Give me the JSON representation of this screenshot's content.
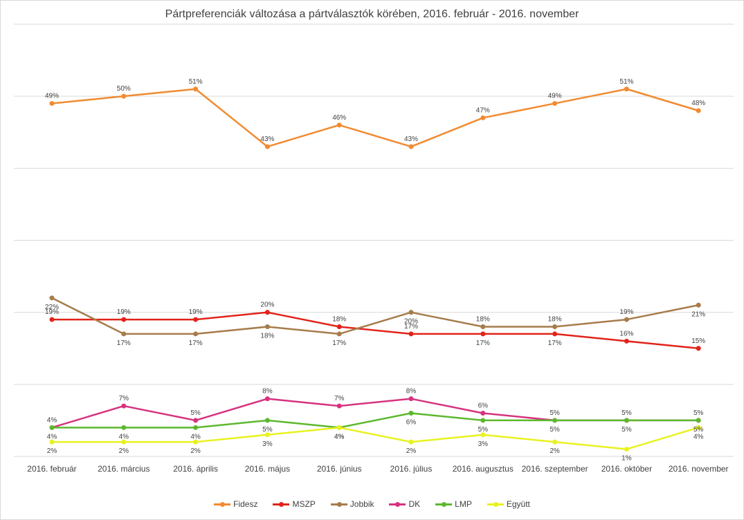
{
  "chart_data": {
    "type": "line",
    "title": "Pártpreferenciák változása a pártválasztók körében, 2016. február - 2016. november",
    "xlabel": "",
    "ylabel": "",
    "ylim": [
      0,
      60
    ],
    "grid": true,
    "legend_position": "bottom",
    "categories": [
      "2016. február",
      "2016. március",
      "2016. április",
      "2016. május",
      "2016. június",
      "2016. július",
      "2016. augusztus",
      "2016. szeptember",
      "2016. október",
      "2016. november"
    ],
    "series": [
      {
        "name": "Fidesz",
        "color": "#f28a30",
        "values": [
          49,
          50,
          51,
          43,
          46,
          43,
          47,
          49,
          51,
          48
        ],
        "labels": [
          "49%",
          "50%",
          "51%",
          "43%",
          "46%",
          "43%",
          "47%",
          "49%",
          "51%",
          "48%"
        ],
        "label_pos": [
          "above",
          "above",
          "above",
          "above",
          "above",
          "above",
          "above",
          "above",
          "above",
          "above"
        ]
      },
      {
        "name": "MSZP",
        "color": "#e2231a",
        "values": [
          19,
          19,
          19,
          20,
          18,
          17,
          17,
          17,
          16,
          15
        ],
        "labels": [
          "19%",
          "19%",
          "19%",
          "20%",
          "18%",
          "17%",
          "17%",
          "17%",
          "16%",
          "15%"
        ],
        "label_pos": [
          "above",
          "above",
          "above",
          "above",
          "above",
          "above",
          "below",
          "below",
          "above",
          "above"
        ]
      },
      {
        "name": "Jobbik",
        "color": "#a67c4a",
        "values": [
          22,
          17,
          17,
          18,
          17,
          20,
          18,
          18,
          19,
          21
        ],
        "labels": [
          "22%",
          "17%",
          "17%",
          "18%",
          "17%",
          "20%",
          "18%",
          "18%",
          "19%",
          "21%"
        ],
        "label_pos": [
          "below",
          "below",
          "below",
          "below",
          "below",
          "below",
          "above",
          "above",
          "above",
          "below"
        ]
      },
      {
        "name": "DK",
        "color": "#d6327f",
        "values": [
          4,
          7,
          5,
          8,
          7,
          8,
          6,
          5,
          5,
          5
        ],
        "labels": [
          "4%",
          "7%",
          "5%",
          "8%",
          "7%",
          "8%",
          "6%",
          "5%",
          "5%",
          "5%"
        ],
        "label_pos": [
          "above",
          "above",
          "above",
          "above",
          "above",
          "above",
          "above",
          "above",
          "above",
          "above"
        ]
      },
      {
        "name": "LMP",
        "color": "#5cb82e",
        "values": [
          4,
          4,
          4,
          5,
          4,
          6,
          5,
          5,
          5,
          5
        ],
        "labels": [
          "4%",
          "4%",
          "4%",
          "5%",
          "4%",
          "6%",
          "5%",
          "5%",
          "5%",
          "5%"
        ],
        "label_pos": [
          "below",
          "below",
          "below",
          "below",
          "below",
          "below",
          "below",
          "below",
          "below",
          "below"
        ]
      },
      {
        "name": "Együtt",
        "color": "#e8f21e",
        "values": [
          2,
          2,
          2,
          3,
          4,
          2,
          3,
          2,
          1,
          4
        ],
        "labels": [
          "2%",
          "2%",
          "2%",
          "3%",
          "4%",
          "2%",
          "3%",
          "2%",
          "1%",
          "4%"
        ],
        "label_pos": [
          "below",
          "below",
          "below",
          "below",
          "below",
          "below",
          "below",
          "below",
          "below",
          "below"
        ]
      }
    ]
  }
}
